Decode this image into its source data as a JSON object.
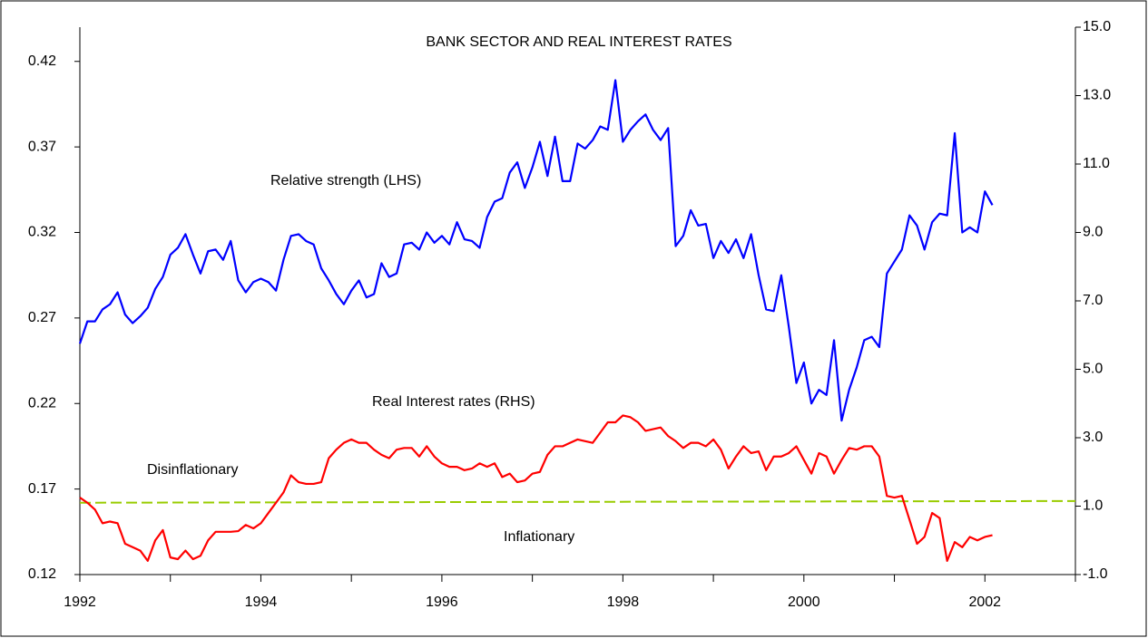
{
  "chart_data": {
    "type": "line",
    "title": "BANK SECTOR AND REAL INTEREST RATES",
    "annotations": [
      "Relative strength (LHS)",
      "Real Interest rates (RHS)",
      "Disinflationary",
      "Inflationary"
    ],
    "xlim": [
      1992,
      2003
    ],
    "xticks": [
      1992,
      1994,
      1996,
      1998,
      2000,
      2002
    ],
    "xminor_ticks": [
      1993,
      1995,
      1997,
      1999,
      2001,
      2003
    ],
    "ylim": [
      0.12,
      0.44
    ],
    "yticks": [
      0.12,
      0.17,
      0.22,
      0.27,
      0.32,
      0.37,
      0.42
    ],
    "y2lim": [
      -1,
      15
    ],
    "y2ticks": [
      {
        "value": -1,
        "label": "-1.0"
      },
      {
        "value": 1,
        "label": "1.0"
      },
      {
        "value": 3,
        "label": "3.0"
      },
      {
        "value": 5,
        "label": "5.0"
      },
      {
        "value": 7,
        "label": "7.0"
      },
      {
        "value": 9,
        "label": "9.0"
      },
      {
        "value": 11,
        "label": "11.0"
      },
      {
        "value": 13,
        "label": "13.0"
      },
      {
        "value": 15,
        "label": "15.0"
      }
    ],
    "x": [
      1992,
      1992.083,
      1992.167,
      1992.25,
      1992.333,
      1992.417,
      1992.5,
      1992.583,
      1992.667,
      1992.75,
      1992.833,
      1992.917,
      1993,
      1993.083,
      1993.167,
      1993.25,
      1993.333,
      1993.417,
      1993.5,
      1993.583,
      1993.667,
      1993.75,
      1993.833,
      1993.917,
      1994,
      1994.083,
      1994.167,
      1994.25,
      1994.333,
      1994.417,
      1994.5,
      1994.583,
      1994.667,
      1994.75,
      1994.833,
      1994.917,
      1995,
      1995.083,
      1995.167,
      1995.25,
      1995.333,
      1995.417,
      1995.5,
      1995.583,
      1995.667,
      1995.75,
      1995.833,
      1995.917,
      1996,
      1996.083,
      1996.167,
      1996.25,
      1996.333,
      1996.417,
      1996.5,
      1996.583,
      1996.667,
      1996.75,
      1996.833,
      1996.917,
      1997,
      1997.083,
      1997.167,
      1997.25,
      1997.333,
      1997.417,
      1997.5,
      1997.583,
      1997.667,
      1997.75,
      1997.833,
      1997.917,
      1998,
      1998.083,
      1998.167,
      1998.25,
      1998.333,
      1998.417,
      1998.5,
      1998.583,
      1998.667,
      1998.75,
      1998.833,
      1998.917,
      1999,
      1999.083,
      1999.167,
      1999.25,
      1999.333,
      1999.417,
      1999.5,
      1999.583,
      1999.667,
      1999.75,
      1999.833,
      1999.917,
      2000,
      2000.083,
      2000.167,
      2000.25,
      2000.333,
      2000.417,
      2000.5,
      2000.583,
      2000.667,
      2000.75,
      2000.833,
      2000.917,
      2001,
      2001.083,
      2001.167,
      2001.25,
      2001.333,
      2001.417,
      2001.5,
      2001.583,
      2001.667,
      2001.75,
      2001.833,
      2001.917,
      2002,
      2002.083
    ],
    "series": [
      {
        "color": "#0000ff",
        "values": [
          0.255,
          0.268,
          0.268,
          0.275,
          0.278,
          0.285,
          0.272,
          0.267,
          0.271,
          0.276,
          0.287,
          0.294,
          0.307,
          0.311,
          0.319,
          0.307,
          0.296,
          0.309,
          0.31,
          0.304,
          0.315,
          0.292,
          0.285,
          0.291,
          0.293,
          0.291,
          0.286,
          0.304,
          0.318,
          0.319,
          0.315,
          0.313,
          0.299,
          0.292,
          0.284,
          0.278,
          0.286,
          0.292,
          0.282,
          0.284,
          0.302,
          0.294,
          0.296,
          0.313,
          0.314,
          0.31,
          0.32,
          0.314,
          0.318,
          0.313,
          0.326,
          0.316,
          0.315,
          0.311,
          0.329,
          0.338,
          0.34,
          0.355,
          0.361,
          0.346,
          0.358,
          0.373,
          0.353,
          0.376,
          0.35,
          0.35,
          0.372,
          0.369,
          0.374,
          0.382,
          0.38,
          0.409,
          0.373,
          0.38,
          0.385,
          0.389,
          0.38,
          0.374,
          0.381,
          0.312,
          0.318,
          0.333,
          0.324,
          0.325,
          0.305,
          0.315,
          0.308,
          0.316,
          0.305,
          0.319,
          0.295,
          0.275,
          0.274,
          0.295,
          0.265,
          0.232,
          0.244,
          0.22,
          0.228,
          0.225,
          0.257,
          0.21,
          0.228,
          0.241,
          0.257,
          0.259,
          0.253,
          0.296,
          0.303,
          0.31,
          0.33,
          0.324,
          0.31,
          0.326,
          0.331,
          0.33,
          0.378,
          0.32,
          0.323,
          0.32,
          0.344,
          0.336
        ]
      },
      {
        "color": "#ff0000",
        "axis": "y2",
        "values": [
          1.25,
          1.1,
          0.9,
          0.5,
          0.55,
          0.5,
          -0.1,
          -0.2,
          -0.3,
          -0.6,
          0,
          0.3,
          -0.5,
          -0.55,
          -0.3,
          -0.55,
          -0.45,
          0,
          0.25,
          0.25,
          0.25,
          0.27,
          0.45,
          0.35,
          0.5,
          0.8,
          1.1,
          1.4,
          1.9,
          1.7,
          1.65,
          1.65,
          1.7,
          2.4,
          2.65,
          2.85,
          2.95,
          2.85,
          2.85,
          2.65,
          2.5,
          2.4,
          2.65,
          2.7,
          2.7,
          2.45,
          2.75,
          2.45,
          2.25,
          2.15,
          2.15,
          2.05,
          2.1,
          2.25,
          2.15,
          2.25,
          1.85,
          1.95,
          1.7,
          1.75,
          1.95,
          2,
          2.5,
          2.75,
          2.75,
          2.85,
          2.95,
          2.9,
          2.85,
          3.15,
          3.45,
          3.45,
          3.65,
          3.6,
          3.45,
          3.2,
          3.25,
          3.3,
          3.05,
          2.9,
          2.7,
          2.85,
          2.85,
          2.75,
          2.95,
          2.65,
          2.1,
          2.45,
          2.75,
          2.55,
          2.6,
          2.05,
          2.45,
          2.45,
          2.55,
          2.75,
          2.35,
          1.95,
          2.55,
          2.45,
          1.95,
          2.35,
          2.7,
          2.65,
          2.75,
          2.75,
          2.45,
          1.3,
          1.25,
          1.3,
          0.6,
          -0.1,
          0.1,
          0.8,
          0.65,
          -0.6,
          -0.05,
          -0.2,
          0.1,
          0,
          0.1,
          0.15
        ]
      }
    ],
    "reference_line": {
      "color": "#99cc00",
      "axis": "y2",
      "dashed": true,
      "x": [
        1992,
        2003
      ],
      "values": [
        1.1,
        1.15
      ]
    }
  }
}
